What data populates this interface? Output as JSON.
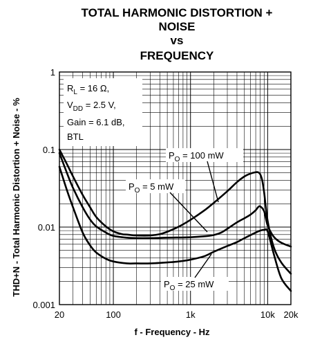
{
  "chart_data": {
    "type": "line",
    "title": [
      "TOTAL HARMONIC DISTORTION +",
      "NOISE",
      "vs",
      "FREQUENCY"
    ],
    "xlabel": "f - Frequency - Hz",
    "ylabel": "THD+N - Total Harmonic Distortion + Noise - %",
    "x_scale": "log",
    "y_scale": "log",
    "xlim": [
      20,
      20000
    ],
    "ylim": [
      0.001,
      1
    ],
    "grid": true,
    "x_ticks": [
      {
        "value": 20,
        "label": "20"
      },
      {
        "value": 100,
        "label": "100"
      },
      {
        "value": 1000,
        "label": "1k"
      },
      {
        "value": 10000,
        "label": "10k"
      },
      {
        "value": 20000,
        "label": "20k"
      }
    ],
    "y_ticks": [
      {
        "value": 1,
        "label": "1"
      },
      {
        "value": 0.1,
        "label": "0.1"
      },
      {
        "value": 0.01,
        "label": "0.01"
      },
      {
        "value": 0.001,
        "label": "0.001"
      }
    ],
    "conditions": {
      "rl_sub": "L",
      "rl_val": " = 16 Ω,",
      "vdd_sub": "DD",
      "vdd_val": " = 2.5 V,",
      "gain": "Gain = 6.1 dB,",
      "mode": "BTL"
    },
    "series": [
      {
        "label_sub": "O",
        "label_val": " = 100 mW",
        "x": [
          20,
          25,
          30,
          40,
          50,
          60,
          80,
          100,
          130,
          150,
          200,
          300,
          400,
          500,
          700,
          1000,
          1500,
          2000,
          3000,
          4000,
          5000,
          6000,
          7000,
          7500,
          8000,
          8500,
          9000,
          10000,
          12000,
          15000,
          20000
        ],
        "y": [
          0.1,
          0.065,
          0.045,
          0.026,
          0.018,
          0.0135,
          0.0102,
          0.0088,
          0.0081,
          0.008,
          0.0078,
          0.0078,
          0.0081,
          0.0087,
          0.0101,
          0.0124,
          0.0163,
          0.0205,
          0.029,
          0.038,
          0.045,
          0.049,
          0.051,
          0.051,
          0.048,
          0.04,
          0.028,
          0.012,
          0.0055,
          0.0035,
          0.0025
        ]
      },
      {
        "label_sub": "O",
        "label_val": " = 5 mW",
        "x": [
          20,
          25,
          30,
          40,
          50,
          60,
          80,
          100,
          150,
          200,
          300,
          500,
          1000,
          1500,
          2000,
          2500,
          3000,
          4000,
          5000,
          6000,
          7000,
          7500,
          8000,
          9000,
          10000,
          12000,
          15000,
          20000
        ],
        "y": [
          0.09,
          0.05,
          0.032,
          0.018,
          0.0125,
          0.0102,
          0.0085,
          0.0077,
          0.0073,
          0.0072,
          0.0072,
          0.0073,
          0.0074,
          0.0076,
          0.0079,
          0.0085,
          0.0095,
          0.0115,
          0.013,
          0.0145,
          0.0165,
          0.018,
          0.0185,
          0.016,
          0.0105,
          0.0075,
          0.0063,
          0.0056
        ]
      },
      {
        "label_sub": "O",
        "label_val": " = 25 mW",
        "x": [
          20,
          25,
          30,
          40,
          50,
          60,
          80,
          100,
          150,
          200,
          300,
          500,
          700,
          1000,
          1500,
          2000,
          3000,
          4000,
          5000,
          7000,
          8000,
          9000,
          10000,
          12000,
          15000,
          20000
        ],
        "y": [
          0.06,
          0.03,
          0.018,
          0.0085,
          0.0058,
          0.0047,
          0.0039,
          0.0036,
          0.0034,
          0.0034,
          0.0034,
          0.0035,
          0.0036,
          0.0038,
          0.0042,
          0.0048,
          0.0057,
          0.0064,
          0.0072,
          0.0085,
          0.009,
          0.0092,
          0.0088,
          0.0045,
          0.0022,
          0.0015
        ]
      }
    ]
  }
}
